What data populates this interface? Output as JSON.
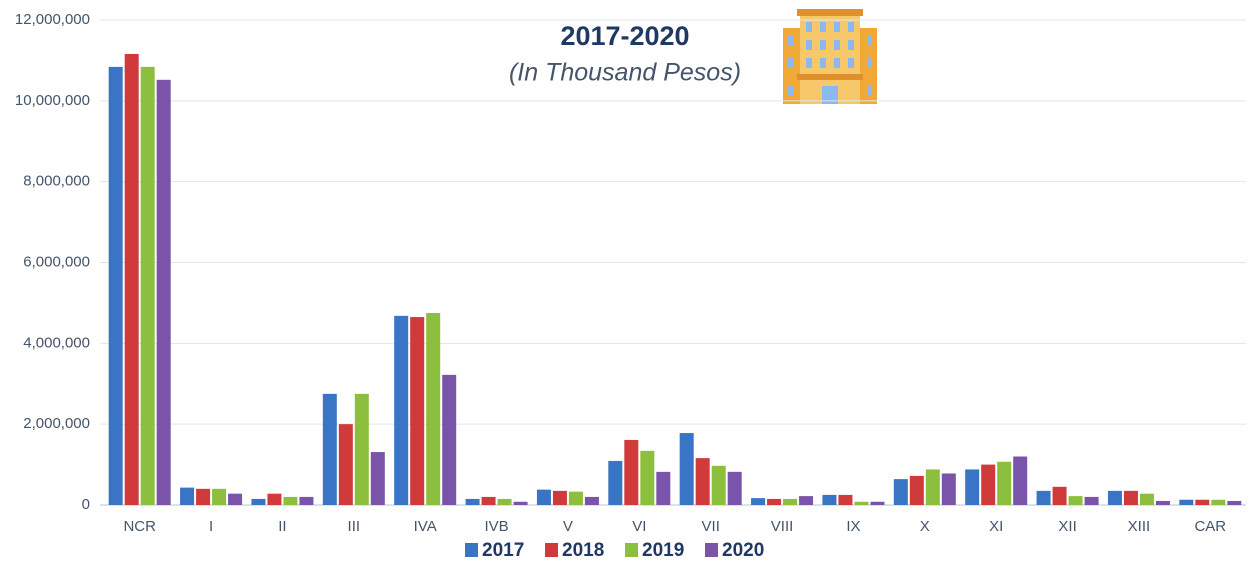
{
  "chart_data": {
    "type": "bar",
    "title": "2017-2020",
    "subtitle": "(In Thousand Pesos)",
    "categories": [
      "NCR",
      "I",
      "II",
      "III",
      "IVA",
      "IVB",
      "V",
      "VI",
      "VII",
      "VIII",
      "IX",
      "X",
      "XI",
      "XII",
      "XIII",
      "CAR"
    ],
    "series": [
      {
        "name": "2017",
        "color": "#3a74c4",
        "values": [
          10840000,
          430000,
          150000,
          2750000,
          4680000,
          150000,
          380000,
          1090000,
          1780000,
          170000,
          250000,
          640000,
          880000,
          350000,
          350000,
          130000
        ]
      },
      {
        "name": "2018",
        "color": "#d03a3a",
        "values": [
          11160000,
          400000,
          280000,
          2000000,
          4650000,
          200000,
          350000,
          1610000,
          1160000,
          150000,
          250000,
          720000,
          1000000,
          450000,
          350000,
          130000
        ]
      },
      {
        "name": "2019",
        "color": "#8dbf3f",
        "values": [
          10840000,
          400000,
          200000,
          2750000,
          4750000,
          150000,
          330000,
          1340000,
          970000,
          150000,
          80000,
          880000,
          1070000,
          220000,
          280000,
          130000
        ]
      },
      {
        "name": "2020",
        "color": "#7a54a8",
        "values": [
          10520000,
          280000,
          200000,
          1310000,
          3220000,
          80000,
          200000,
          820000,
          820000,
          220000,
          80000,
          780000,
          1200000,
          200000,
          100000,
          100000
        ]
      }
    ],
    "ylim": [
      0,
      12000000
    ],
    "yticks": [
      0,
      {
        "value": 2000000,
        "label": "2,000,000"
      },
      {
        "value": 4000000,
        "label": "4,000,000"
      },
      {
        "value": 6000000,
        "label": "6,000,000"
      },
      {
        "value": 8000000,
        "label": "8,000,000"
      },
      {
        "value": 10000000,
        "label": "10,000,000"
      },
      {
        "value": 12000000,
        "label": "12,000,000"
      }
    ],
    "grid": true,
    "legend": "bottom"
  }
}
